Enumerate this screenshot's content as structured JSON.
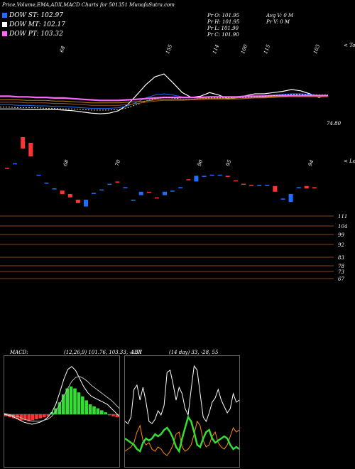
{
  "header": {
    "title": "Price,Volume,EMA,ADX,MACD Charts for 501351 MunafaSutra.com"
  },
  "legend": [
    {
      "label": "DOW ST: 102.97",
      "color": "#1e6fff"
    },
    {
      "label": "DOW MT: 102.17",
      "color": "#ffffff"
    },
    {
      "label": "DOW PT: 103.32",
      "color": "#ff66ff"
    }
  ],
  "stats": {
    "pr_o": "Pr O: 101.95",
    "pr_h": "Pr H: 101.95",
    "pr_l": "Pr L: 101.90",
    "pr_c": "Pr C: 101.90",
    "avg_v": "Avg V: 0 M",
    "pr_v": "Pr V: 0 M"
  },
  "chart_data": [
    {
      "type": "line",
      "panel": "ema",
      "tops_label": "< Tops",
      "lows_label": "< Lows",
      "top_labels": [
        "68",
        "155",
        "114",
        "100",
        "115",
        "103"
      ],
      "low_labels": [
        "68",
        "70",
        "90",
        "95",
        "94"
      ],
      "last_value_label": "74.80",
      "series": [
        {
          "color": "#ffffff",
          "values": [
            55,
            55,
            55,
            54,
            54,
            54,
            54,
            53,
            52,
            50,
            48,
            47,
            48,
            52,
            62,
            78,
            95,
            108,
            113,
            98,
            82,
            74,
            76,
            82,
            78,
            72,
            73,
            77,
            80,
            80,
            82,
            84,
            87,
            85,
            80,
            74,
            78
          ]
        },
        {
          "color": "#1e6fff",
          "values": [
            62,
            62,
            61,
            61,
            60,
            60,
            59,
            59,
            58,
            57,
            56,
            56,
            56,
            57,
            60,
            66,
            73,
            78,
            80,
            78,
            75,
            74,
            74,
            75,
            75,
            74,
            74,
            75,
            76,
            77,
            78,
            79,
            80,
            80,
            79,
            78,
            78
          ]
        },
        {
          "color": "#ff66ff",
          "values": [
            76,
            76,
            75,
            75,
            74,
            74,
            73,
            73,
            72,
            71,
            70,
            69,
            69,
            69,
            70,
            71,
            72,
            73,
            74,
            74,
            74,
            74,
            74,
            75,
            75,
            75,
            75,
            76,
            76,
            76,
            77,
            77,
            77,
            77,
            77,
            77,
            77
          ]
        },
        {
          "color": "#d9d9d9",
          "values": [
            58,
            58,
            57,
            57,
            57,
            56,
            56,
            55,
            55,
            54,
            53,
            53,
            53,
            54,
            57,
            62,
            68,
            72,
            74,
            73,
            71,
            71,
            72,
            73,
            73,
            73,
            73,
            74,
            75,
            76,
            77,
            78,
            79,
            79,
            78,
            78,
            78
          ]
        },
        {
          "color": "#a0522d",
          "values": [
            66,
            66,
            66,
            65,
            65,
            65,
            64,
            64,
            63,
            62,
            61,
            61,
            61,
            61,
            62,
            64,
            66,
            68,
            69,
            69,
            69,
            70,
            70,
            71,
            71,
            71,
            71,
            72,
            73,
            73,
            74,
            75,
            75,
            75,
            75,
            75,
            75
          ]
        },
        {
          "color": "#b8860b",
          "values": [
            70,
            70,
            70,
            69,
            69,
            69,
            68,
            68,
            67,
            66,
            65,
            65,
            65,
            65,
            66,
            67,
            68,
            70,
            71,
            71,
            71,
            71,
            72,
            72,
            72,
            72,
            73,
            73,
            74,
            74,
            75,
            75,
            76,
            76,
            76,
            76,
            76
          ]
        }
      ]
    },
    {
      "type": "candlestick",
      "panel": "price",
      "ylabels": [
        "111",
        "104",
        "99",
        "92",
        "83",
        "78",
        "73",
        "67"
      ],
      "candles": [
        {
          "o": 118,
          "c": 118,
          "color": "#ff3333"
        },
        {
          "o": 122,
          "c": 122,
          "color": "#1e6fff"
        },
        {
          "o": 135,
          "c": 145,
          "color": "#ff3333"
        },
        {
          "o": 140,
          "c": 128,
          "color": "#ff3333"
        },
        {
          "o": 112,
          "c": 112,
          "color": "#1e6fff"
        },
        {
          "o": 105,
          "c": 105,
          "color": "#1e6fff"
        },
        {
          "o": 100,
          "c": 100,
          "color": "#1e6fff"
        },
        {
          "o": 98,
          "c": 95,
          "color": "#ff3333"
        },
        {
          "o": 95,
          "c": 92,
          "color": "#ff3333"
        },
        {
          "o": 90,
          "c": 87,
          "color": "#ff3333"
        },
        {
          "o": 90,
          "c": 84,
          "color": "#1e6fff"
        },
        {
          "o": 96,
          "c": 96,
          "color": "#1e6fff"
        },
        {
          "o": 99,
          "c": 99,
          "color": "#1e6fff"
        },
        {
          "o": 104,
          "c": 104,
          "color": "#1e6fff"
        },
        {
          "o": 106,
          "c": 106,
          "color": "#ff3333"
        },
        {
          "o": 101,
          "c": 101,
          "color": "#1e6fff"
        },
        {
          "o": 90,
          "c": 90,
          "color": "#1e6fff"
        },
        {
          "o": 94,
          "c": 97,
          "color": "#1e6fff"
        },
        {
          "o": 97,
          "c": 96,
          "color": "#ff3333"
        },
        {
          "o": 92,
          "c": 92,
          "color": "#ff3333"
        },
        {
          "o": 94,
          "c": 97,
          "color": "#1e6fff"
        },
        {
          "o": 98,
          "c": 98,
          "color": "#1e6fff"
        },
        {
          "o": 101,
          "c": 101,
          "color": "#1e6fff"
        },
        {
          "o": 108,
          "c": 108,
          "color": "#ff3333"
        },
        {
          "o": 111,
          "c": 106,
          "color": "#1e6fff"
        },
        {
          "o": 111,
          "c": 111,
          "color": "#1e6fff"
        },
        {
          "o": 112,
          "c": 112,
          "color": "#1e6fff"
        },
        {
          "o": 112,
          "c": 112,
          "color": "#1e6fff"
        },
        {
          "o": 111,
          "c": 110,
          "color": "#ff3333"
        },
        {
          "o": 107,
          "c": 107,
          "color": "#ff3333"
        },
        {
          "o": 104,
          "c": 104,
          "color": "#ff3333"
        },
        {
          "o": 103,
          "c": 103,
          "color": "#ff3333"
        },
        {
          "o": 103,
          "c": 103,
          "color": "#1e6fff"
        },
        {
          "o": 103,
          "c": 103,
          "color": "#1e6fff"
        },
        {
          "o": 102,
          "c": 97,
          "color": "#ff3333"
        },
        {
          "o": 91,
          "c": 91,
          "color": "#1e6fff"
        },
        {
          "o": 95,
          "c": 88,
          "color": "#1e6fff"
        },
        {
          "o": 101,
          "c": 101,
          "color": "#1e6fff"
        },
        {
          "o": 102,
          "c": 100,
          "color": "#ff3333"
        },
        {
          "o": 101,
          "c": 101,
          "color": "#ff3333"
        }
      ]
    },
    {
      "type": "bar",
      "panel": "macd",
      "label": "MACD:",
      "params": "(12,26,9) 101.76, 103.33, -1.57",
      "histogram": [
        -2,
        -3,
        -4,
        -5,
        -6,
        -6,
        -7,
        -6,
        -5,
        -4,
        -3,
        -2,
        2,
        6,
        12,
        20,
        26,
        28,
        26,
        22,
        18,
        14,
        10,
        8,
        6,
        4,
        2,
        -1,
        -2,
        -3
      ],
      "line_values": [
        0,
        -1,
        -2,
        -4,
        -6,
        -8,
        -9,
        -10,
        -9,
        -8,
        -6,
        -3,
        2,
        10,
        22,
        35,
        45,
        48,
        44,
        36,
        28,
        22,
        18,
        16,
        14,
        12,
        10,
        6,
        2,
        -2
      ],
      "signal_values": [
        1,
        0,
        -1,
        -2,
        -3,
        -5,
        -6,
        -7,
        -7,
        -7,
        -6,
        -5,
        -2,
        3,
        10,
        18,
        26,
        33,
        37,
        38,
        36,
        33,
        29,
        26,
        23,
        20,
        17,
        14,
        10,
        6
      ]
    },
    {
      "type": "line",
      "panel": "adx",
      "label": "ADX",
      "params": "(14 day) 33, -28, 55",
      "series": [
        {
          "color": "#ffffff",
          "values": [
            40,
            38,
            44,
            70,
            74,
            60,
            72,
            58,
            40,
            38,
            42,
            50,
            46,
            55,
            86,
            88,
            75,
            60,
            72,
            66,
            52,
            46,
            70,
            92,
            88,
            66,
            44,
            40,
            48,
            58,
            62,
            70,
            60,
            54,
            48,
            52,
            66,
            58,
            60
          ]
        },
        {
          "color": "#ff8c00",
          "values": [
            12,
            14,
            16,
            20,
            30,
            36,
            22,
            18,
            20,
            14,
            12,
            16,
            14,
            10,
            8,
            12,
            18,
            28,
            30,
            16,
            12,
            14,
            18,
            28,
            40,
            36,
            22,
            16,
            18,
            26,
            30,
            20,
            16,
            14,
            18,
            26,
            34,
            30,
            32
          ]
        },
        {
          "color": "#33dd33",
          "values": [
            24,
            22,
            20,
            18,
            14,
            12,
            20,
            24,
            22,
            24,
            28,
            26,
            28,
            32,
            34,
            30,
            24,
            16,
            12,
            24,
            34,
            44,
            40,
            30,
            18,
            16,
            24,
            30,
            32,
            24,
            20,
            22,
            24,
            26,
            24,
            18,
            14,
            16,
            14
          ]
        }
      ]
    }
  ]
}
